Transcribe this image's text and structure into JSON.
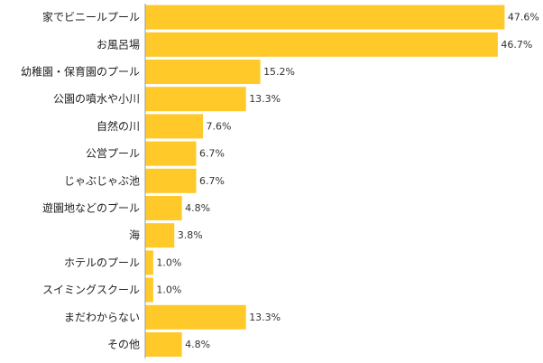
{
  "chart_data": {
    "type": "bar",
    "orientation": "horizontal",
    "categories": [
      "家でビニールプール",
      "お風呂場",
      "幼稚園・保育園のプール",
      "公園の噴水や小川",
      "自然の川",
      "公営プール",
      "じゃぶじゃぶ池",
      "遊園地などのプール",
      "海",
      "ホテルのプール",
      "スイミングスクール",
      "まだわからない",
      "その他"
    ],
    "values": [
      47.6,
      46.7,
      15.2,
      13.3,
      7.6,
      6.7,
      6.7,
      4.8,
      3.8,
      1.0,
      1.0,
      13.3,
      4.8
    ],
    "value_labels": [
      "47.6%",
      "46.7%",
      "15.2%",
      "13.3%",
      "7.6%",
      "6.7%",
      "6.7%",
      "4.8%",
      "3.8%",
      "1.0%",
      "1.0%",
      "13.3%",
      "4.8%"
    ],
    "xlim": [
      0,
      50
    ],
    "grid": false,
    "bar_color": "#FFC929",
    "axis_color": "#999999"
  }
}
